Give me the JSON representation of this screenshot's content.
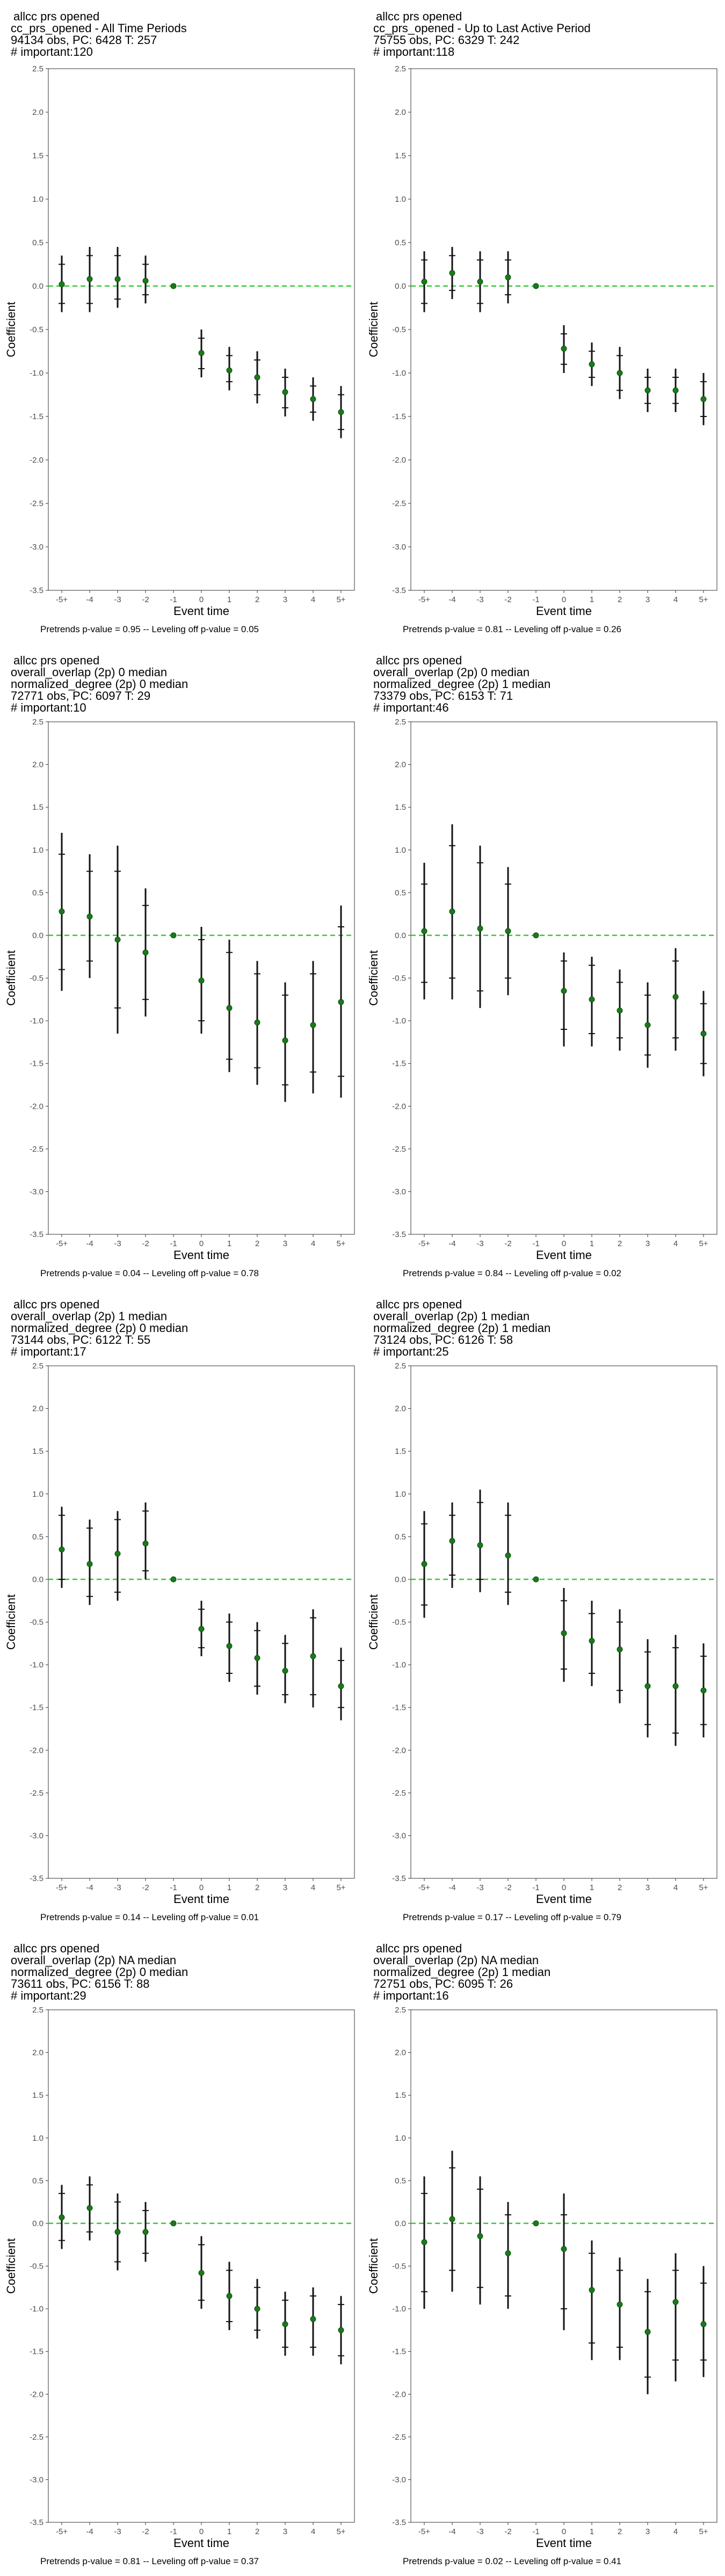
{
  "chart_data": [
    {
      "type": "scatter",
      "title_lines": [
        "allcc prs opened",
        "cc_prs_opened - All Time Periods",
        "94134 obs, PC: 6428 T: 257",
        "# important:120"
      ],
      "xlabel": "Event time",
      "ylabel": "Coefficient",
      "categories": [
        "-5+",
        "-4",
        "-3",
        "-2",
        "-1",
        "0",
        "1",
        "2",
        "3",
        "4",
        "5+"
      ],
      "ylim": [
        -3.5,
        2.5
      ],
      "yticks": [
        "-3.5",
        "-3.0",
        "-2.5",
        "-2.0",
        "-1.5",
        "-1.0",
        "-0.5",
        "0.0",
        "0.5",
        "1.0",
        "1.5",
        "2.0",
        "2.5"
      ],
      "reference_line": {
        "y": 0,
        "color": "#33cc33",
        "style": "dashed"
      },
      "grid": false,
      "point_color": "#1a7a1a",
      "ci95": {
        "lower": [
          -0.3,
          -0.3,
          -0.25,
          -0.2,
          null,
          -1.05,
          -1.2,
          -1.35,
          -1.5,
          -1.55,
          -1.75
        ],
        "upper": [
          0.35,
          0.45,
          0.45,
          0.35,
          null,
          -0.5,
          -0.7,
          -0.75,
          -0.95,
          -1.05,
          -1.15
        ]
      },
      "ci90": {
        "lower": [
          -0.2,
          -0.2,
          -0.15,
          -0.1,
          null,
          -0.95,
          -1.1,
          -1.25,
          -1.4,
          -1.45,
          -1.65
        ],
        "upper": [
          0.25,
          0.35,
          0.35,
          0.25,
          null,
          -0.6,
          -0.8,
          -0.85,
          -1.05,
          -1.15,
          -1.25
        ]
      },
      "values": [
        0.02,
        0.08,
        0.08,
        0.06,
        0.0,
        -0.77,
        -0.97,
        -1.05,
        -1.22,
        -1.3,
        -1.45
      ],
      "caption": "Pretrends p-value = 0.95 -- Leveling off p-value = 0.05"
    },
    {
      "type": "scatter",
      "title_lines": [
        "allcc prs opened",
        "cc_prs_opened - Up to Last Active Period",
        "75755 obs, PC: 6329 T: 242",
        "# important:118"
      ],
      "xlabel": "Event time",
      "ylabel": "Coefficient",
      "categories": [
        "-5+",
        "-4",
        "-3",
        "-2",
        "-1",
        "0",
        "1",
        "2",
        "3",
        "4",
        "5+"
      ],
      "ylim": [
        -3.5,
        2.5
      ],
      "yticks": [
        "-3.5",
        "-3.0",
        "-2.5",
        "-2.0",
        "-1.5",
        "-1.0",
        "-0.5",
        "0.0",
        "0.5",
        "1.0",
        "1.5",
        "2.0",
        "2.5"
      ],
      "reference_line": {
        "y": 0,
        "color": "#33cc33",
        "style": "dashed"
      },
      "grid": false,
      "point_color": "#1a7a1a",
      "ci95": {
        "lower": [
          -0.3,
          -0.15,
          -0.3,
          -0.2,
          null,
          -1.0,
          -1.15,
          -1.3,
          -1.45,
          -1.45,
          -1.6
        ],
        "upper": [
          0.4,
          0.45,
          0.4,
          0.4,
          null,
          -0.45,
          -0.65,
          -0.7,
          -0.95,
          -0.95,
          -1.0
        ]
      },
      "ci90": {
        "lower": [
          -0.2,
          -0.05,
          -0.2,
          -0.1,
          null,
          -0.9,
          -1.05,
          -1.2,
          -1.35,
          -1.35,
          -1.5
        ],
        "upper": [
          0.3,
          0.35,
          0.3,
          0.3,
          null,
          -0.55,
          -0.75,
          -0.8,
          -1.05,
          -1.05,
          -1.1
        ]
      },
      "values": [
        0.05,
        0.15,
        0.05,
        0.1,
        0.0,
        -0.72,
        -0.9,
        -1.0,
        -1.2,
        -1.2,
        -1.3
      ],
      "caption": "Pretrends p-value = 0.81 -- Leveling off p-value = 0.26"
    },
    {
      "type": "scatter",
      "title_lines": [
        "allcc prs opened",
        "overall_overlap (2p) 0 median",
        "normalized_degree (2p) 0 median",
        "72771 obs, PC: 6097 T: 29",
        "# important:10"
      ],
      "xlabel": "Event time",
      "ylabel": "Coefficient",
      "categories": [
        "-5+",
        "-4",
        "-3",
        "-2",
        "-1",
        "0",
        "1",
        "2",
        "3",
        "4",
        "5+"
      ],
      "ylim": [
        -3.5,
        2.5
      ],
      "yticks": [
        "-3.5",
        "-3.0",
        "-2.5",
        "-2.0",
        "-1.5",
        "-1.0",
        "-0.5",
        "0.0",
        "0.5",
        "1.0",
        "1.5",
        "2.0",
        "2.5"
      ],
      "reference_line": {
        "y": 0,
        "color": "#33cc33",
        "style": "dashed"
      },
      "grid": false,
      "point_color": "#1a7a1a",
      "ci95": {
        "lower": [
          -0.65,
          -0.5,
          -1.15,
          -0.95,
          null,
          -1.15,
          -1.6,
          -1.75,
          -1.95,
          -1.85,
          -1.9
        ],
        "upper": [
          1.2,
          0.95,
          1.05,
          0.55,
          null,
          0.1,
          -0.05,
          -0.3,
          -0.55,
          -0.3,
          0.35
        ]
      },
      "ci90": {
        "lower": [
          -0.4,
          -0.3,
          -0.85,
          -0.75,
          null,
          -1.0,
          -1.45,
          -1.55,
          -1.75,
          -1.6,
          -1.65
        ],
        "upper": [
          0.95,
          0.75,
          0.75,
          0.35,
          null,
          -0.05,
          -0.2,
          -0.45,
          -0.7,
          -0.45,
          0.1
        ]
      },
      "values": [
        0.28,
        0.22,
        -0.05,
        -0.2,
        0.0,
        -0.53,
        -0.85,
        -1.02,
        -1.23,
        -1.05,
        -0.78
      ],
      "caption": "Pretrends p-value = 0.04 -- Leveling off p-value = 0.78"
    },
    {
      "type": "scatter",
      "title_lines": [
        "allcc prs opened",
        "overall_overlap (2p) 0 median",
        "normalized_degree (2p) 1 median",
        "73379 obs, PC: 6153 T: 71",
        "# important:46"
      ],
      "xlabel": "Event time",
      "ylabel": "Coefficient",
      "categories": [
        "-5+",
        "-4",
        "-3",
        "-2",
        "-1",
        "0",
        "1",
        "2",
        "3",
        "4",
        "5+"
      ],
      "ylim": [
        -3.5,
        2.5
      ],
      "yticks": [
        "-3.5",
        "-3.0",
        "-2.5",
        "-2.0",
        "-1.5",
        "-1.0",
        "-0.5",
        "0.0",
        "0.5",
        "1.0",
        "1.5",
        "2.0",
        "2.5"
      ],
      "reference_line": {
        "y": 0,
        "color": "#33cc33",
        "style": "dashed"
      },
      "grid": false,
      "point_color": "#1a7a1a",
      "ci95": {
        "lower": [
          -0.75,
          -0.75,
          -0.85,
          -0.7,
          null,
          -1.3,
          -1.3,
          -1.35,
          -1.55,
          -1.35,
          -1.65
        ],
        "upper": [
          0.85,
          1.3,
          1.05,
          0.8,
          null,
          -0.2,
          -0.25,
          -0.4,
          -0.55,
          -0.15,
          -0.65
        ]
      },
      "ci90": {
        "lower": [
          -0.55,
          -0.5,
          -0.65,
          -0.5,
          null,
          -1.1,
          -1.15,
          -1.2,
          -1.4,
          -1.2,
          -1.5
        ],
        "upper": [
          0.6,
          1.05,
          0.85,
          0.6,
          null,
          -0.3,
          -0.35,
          -0.55,
          -0.7,
          -0.3,
          -0.8
        ]
      },
      "values": [
        0.05,
        0.28,
        0.08,
        0.05,
        0.0,
        -0.65,
        -0.75,
        -0.88,
        -1.05,
        -0.72,
        -1.15
      ],
      "caption": "Pretrends p-value = 0.84 -- Leveling off p-value = 0.02"
    },
    {
      "type": "scatter",
      "title_lines": [
        "allcc prs opened",
        "overall_overlap (2p) 1 median",
        "normalized_degree (2p) 0 median",
        "73144 obs, PC: 6122 T: 55",
        "# important:17"
      ],
      "xlabel": "Event time",
      "ylabel": "Coefficient",
      "categories": [
        "-5+",
        "-4",
        "-3",
        "-2",
        "-1",
        "0",
        "1",
        "2",
        "3",
        "4",
        "5+"
      ],
      "ylim": [
        -3.5,
        2.5
      ],
      "yticks": [
        "-3.5",
        "-3.0",
        "-2.5",
        "-2.0",
        "-1.5",
        "-1.0",
        "-0.5",
        "0.0",
        "0.5",
        "1.0",
        "1.5",
        "2.0",
        "2.5"
      ],
      "reference_line": {
        "y": 0,
        "color": "#33cc33",
        "style": "dashed"
      },
      "grid": false,
      "point_color": "#1a7a1a",
      "ci95": {
        "lower": [
          -0.1,
          -0.3,
          -0.25,
          0.0,
          null,
          -0.9,
          -1.2,
          -1.35,
          -1.45,
          -1.5,
          -1.65
        ],
        "upper": [
          0.85,
          0.7,
          0.8,
          0.9,
          null,
          -0.25,
          -0.4,
          -0.5,
          -0.65,
          -0.35,
          -0.8
        ]
      },
      "ci90": {
        "lower": [
          0.0,
          -0.2,
          -0.15,
          0.1,
          null,
          -0.8,
          -1.1,
          -1.25,
          -1.35,
          -1.35,
          -1.5
        ],
        "upper": [
          0.75,
          0.6,
          0.7,
          0.8,
          null,
          -0.35,
          -0.5,
          -0.6,
          -0.75,
          -0.45,
          -0.95
        ]
      },
      "values": [
        0.35,
        0.18,
        0.3,
        0.42,
        0.0,
        -0.58,
        -0.78,
        -0.92,
        -1.07,
        -0.9,
        -1.25
      ],
      "caption": "Pretrends p-value = 0.14 -- Leveling off p-value = 0.01"
    },
    {
      "type": "scatter",
      "title_lines": [
        "allcc prs opened",
        "overall_overlap (2p) 1 median",
        "normalized_degree (2p) 1 median",
        "73124 obs, PC: 6126 T: 58",
        "# important:25"
      ],
      "xlabel": "Event time",
      "ylabel": "Coefficient",
      "categories": [
        "-5+",
        "-4",
        "-3",
        "-2",
        "-1",
        "0",
        "1",
        "2",
        "3",
        "4",
        "5+"
      ],
      "ylim": [
        -3.5,
        2.5
      ],
      "yticks": [
        "-3.5",
        "-3.0",
        "-2.5",
        "-2.0",
        "-1.5",
        "-1.0",
        "-0.5",
        "0.0",
        "0.5",
        "1.0",
        "1.5",
        "2.0",
        "2.5"
      ],
      "reference_line": {
        "y": 0,
        "color": "#33cc33",
        "style": "dashed"
      },
      "grid": false,
      "point_color": "#1a7a1a",
      "ci95": {
        "lower": [
          -0.45,
          -0.1,
          -0.15,
          -0.3,
          null,
          -1.2,
          -1.25,
          -1.45,
          -1.85,
          -1.95,
          -1.85
        ],
        "upper": [
          0.8,
          0.9,
          1.05,
          0.9,
          null,
          -0.1,
          -0.25,
          -0.35,
          -0.7,
          -0.65,
          -0.75
        ]
      },
      "ci90": {
        "lower": [
          -0.3,
          0.05,
          0.0,
          -0.15,
          null,
          -1.05,
          -1.1,
          -1.3,
          -1.7,
          -1.8,
          -1.7
        ],
        "upper": [
          0.65,
          0.75,
          0.9,
          0.75,
          null,
          -0.25,
          -0.4,
          -0.5,
          -0.85,
          -0.8,
          -0.9
        ]
      },
      "values": [
        0.18,
        0.45,
        0.4,
        0.28,
        0.0,
        -0.63,
        -0.72,
        -0.82,
        -1.25,
        -1.25,
        -1.3
      ],
      "caption": "Pretrends p-value = 0.17 -- Leveling off p-value = 0.79"
    },
    {
      "type": "scatter",
      "title_lines": [
        "allcc prs opened",
        "overall_overlap (2p) NA median",
        "normalized_degree (2p) 0 median",
        "73611 obs, PC: 6156 T: 88",
        "# important:29"
      ],
      "xlabel": "Event time",
      "ylabel": "Coefficient",
      "categories": [
        "-5+",
        "-4",
        "-3",
        "-2",
        "-1",
        "0",
        "1",
        "2",
        "3",
        "4",
        "5+"
      ],
      "ylim": [
        -3.5,
        2.5
      ],
      "yticks": [
        "-3.5",
        "-3.0",
        "-2.5",
        "-2.0",
        "-1.5",
        "-1.0",
        "-0.5",
        "0.0",
        "0.5",
        "1.0",
        "1.5",
        "2.0",
        "2.5"
      ],
      "reference_line": {
        "y": 0,
        "color": "#33cc33",
        "style": "dashed"
      },
      "grid": false,
      "point_color": "#1a7a1a",
      "ci95": {
        "lower": [
          -0.3,
          -0.2,
          -0.55,
          -0.45,
          null,
          -1.0,
          -1.25,
          -1.35,
          -1.55,
          -1.55,
          -1.65
        ],
        "upper": [
          0.45,
          0.55,
          0.35,
          0.25,
          null,
          -0.15,
          -0.45,
          -0.65,
          -0.8,
          -0.75,
          -0.85
        ]
      },
      "ci90": {
        "lower": [
          -0.2,
          -0.1,
          -0.45,
          -0.35,
          null,
          -0.9,
          -1.15,
          -1.25,
          -1.45,
          -1.45,
          -1.55
        ],
        "upper": [
          0.35,
          0.45,
          0.25,
          0.15,
          null,
          -0.25,
          -0.55,
          -0.75,
          -0.9,
          -0.85,
          -0.95
        ]
      },
      "values": [
        0.07,
        0.18,
        -0.1,
        -0.1,
        0.0,
        -0.58,
        -0.85,
        -1.0,
        -1.18,
        -1.12,
        -1.25
      ],
      "caption": "Pretrends p-value = 0.81 -- Leveling off p-value = 0.37"
    },
    {
      "type": "scatter",
      "title_lines": [
        "allcc prs opened",
        "overall_overlap (2p) NA median",
        "normalized_degree (2p) 1 median",
        "72751 obs, PC: 6095 T: 26",
        "# important:16"
      ],
      "xlabel": "Event time",
      "ylabel": "Coefficient",
      "categories": [
        "-5+",
        "-4",
        "-3",
        "-2",
        "-1",
        "0",
        "1",
        "2",
        "3",
        "4",
        "5+"
      ],
      "ylim": [
        -3.5,
        2.5
      ],
      "yticks": [
        "-3.5",
        "-3.0",
        "-2.5",
        "-2.0",
        "-1.5",
        "-1.0",
        "-0.5",
        "0.0",
        "0.5",
        "1.0",
        "1.5",
        "2.0",
        "2.5"
      ],
      "reference_line": {
        "y": 0,
        "color": "#33cc33",
        "style": "dashed"
      },
      "grid": false,
      "point_color": "#1a7a1a",
      "ci95": {
        "lower": [
          -1.0,
          -0.8,
          -0.95,
          -1.0,
          null,
          -1.25,
          -1.6,
          -1.6,
          -2.0,
          -1.85,
          -1.8
        ],
        "upper": [
          0.55,
          0.85,
          0.55,
          0.25,
          null,
          0.35,
          -0.2,
          -0.4,
          -0.65,
          -0.35,
          -0.5
        ]
      },
      "ci90": {
        "lower": [
          -0.8,
          -0.55,
          -0.75,
          -0.85,
          null,
          -1.0,
          -1.4,
          -1.45,
          -1.8,
          -1.6,
          -1.6
        ],
        "upper": [
          0.35,
          0.65,
          0.4,
          0.1,
          null,
          0.1,
          -0.35,
          -0.55,
          -0.8,
          -0.55,
          -0.7
        ]
      },
      "values": [
        -0.22,
        0.05,
        -0.15,
        -0.35,
        0.0,
        -0.3,
        -0.78,
        -0.95,
        -1.27,
        -0.92,
        -1.18
      ],
      "caption": "Pretrends p-value = 0.02 -- Leveling off p-value = 0.41"
    }
  ]
}
